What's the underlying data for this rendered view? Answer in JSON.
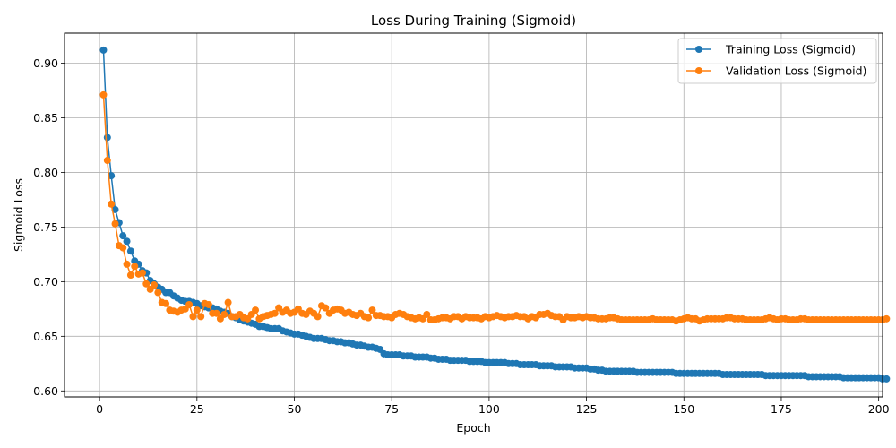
{
  "chart_data": {
    "type": "line",
    "title": "Loss During Training (Sigmoid)",
    "xlabel": "Epoch",
    "ylabel": "Sigmoid Loss",
    "xlim": [
      -9,
      201
    ],
    "ylim": [
      0.5945,
      0.9275
    ],
    "xticks": [
      0,
      25,
      50,
      75,
      100,
      125,
      150,
      175,
      200
    ],
    "yticks": [
      0.6,
      0.65,
      0.7,
      0.75,
      0.8,
      0.85,
      0.9
    ],
    "ytick_labels": [
      "0.60",
      "0.65",
      "0.70",
      "0.75",
      "0.80",
      "0.85",
      "0.90"
    ],
    "grid": true,
    "legend_position": "top-right",
    "x_start": 1,
    "x_end": 200,
    "series": [
      {
        "name": "Training Loss (Sigmoid)",
        "color": "#1f77b4",
        "values": [
          0.912,
          0.832,
          0.797,
          0.766,
          0.754,
          0.742,
          0.737,
          0.728,
          0.719,
          0.716,
          0.71,
          0.708,
          0.701,
          0.698,
          0.695,
          0.693,
          0.69,
          0.69,
          0.687,
          0.685,
          0.683,
          0.682,
          0.682,
          0.681,
          0.68,
          0.678,
          0.677,
          0.676,
          0.676,
          0.675,
          0.673,
          0.672,
          0.671,
          0.668,
          0.667,
          0.665,
          0.664,
          0.663,
          0.662,
          0.661,
          0.659,
          0.659,
          0.658,
          0.657,
          0.657,
          0.657,
          0.655,
          0.654,
          0.653,
          0.652,
          0.652,
          0.651,
          0.65,
          0.649,
          0.648,
          0.648,
          0.648,
          0.647,
          0.646,
          0.646,
          0.645,
          0.645,
          0.644,
          0.644,
          0.643,
          0.642,
          0.642,
          0.641,
          0.64,
          0.64,
          0.639,
          0.638,
          0.634,
          0.633,
          0.633,
          0.633,
          0.633,
          0.632,
          0.632,
          0.632,
          0.631,
          0.631,
          0.631,
          0.631,
          0.63,
          0.63,
          0.629,
          0.629,
          0.629,
          0.628,
          0.628,
          0.628,
          0.628,
          0.628,
          0.627,
          0.627,
          0.627,
          0.627,
          0.626,
          0.626,
          0.626,
          0.626,
          0.626,
          0.626,
          0.625,
          0.625,
          0.625,
          0.624,
          0.624,
          0.624,
          0.624,
          0.624,
          0.623,
          0.623,
          0.623,
          0.623,
          0.622,
          0.622,
          0.622,
          0.622,
          0.622,
          0.621,
          0.621,
          0.621,
          0.621,
          0.62,
          0.62,
          0.619,
          0.619,
          0.618,
          0.618,
          0.618,
          0.618,
          0.618,
          0.618,
          0.618,
          0.618,
          0.617,
          0.617,
          0.617,
          0.617,
          0.617,
          0.617,
          0.617,
          0.617,
          0.617,
          0.617,
          0.616,
          0.616,
          0.616,
          0.616,
          0.616,
          0.616,
          0.616,
          0.616,
          0.616,
          0.616,
          0.616,
          0.616,
          0.615,
          0.615,
          0.615,
          0.615,
          0.615,
          0.615,
          0.615,
          0.615,
          0.615,
          0.615,
          0.615,
          0.614,
          0.614,
          0.614,
          0.614,
          0.614,
          0.614,
          0.614,
          0.614,
          0.614,
          0.614,
          0.614,
          0.613,
          0.613,
          0.613,
          0.613,
          0.613,
          0.613,
          0.613,
          0.613,
          0.613,
          0.612,
          0.612,
          0.612,
          0.612,
          0.612,
          0.612,
          0.612,
          0.612,
          0.612,
          0.612,
          0.611,
          0.611
        ]
      },
      {
        "name": "Validation Loss (Sigmoid)",
        "color": "#ff7f0e",
        "values": [
          0.871,
          0.811,
          0.771,
          0.753,
          0.733,
          0.731,
          0.716,
          0.706,
          0.714,
          0.707,
          0.708,
          0.698,
          0.693,
          0.697,
          0.69,
          0.681,
          0.68,
          0.674,
          0.673,
          0.672,
          0.674,
          0.675,
          0.679,
          0.668,
          0.674,
          0.668,
          0.68,
          0.679,
          0.671,
          0.671,
          0.666,
          0.67,
          0.681,
          0.668,
          0.668,
          0.67,
          0.667,
          0.666,
          0.67,
          0.674,
          0.666,
          0.668,
          0.669,
          0.67,
          0.671,
          0.676,
          0.672,
          0.674,
          0.671,
          0.672,
          0.675,
          0.671,
          0.67,
          0.673,
          0.671,
          0.668,
          0.678,
          0.676,
          0.671,
          0.674,
          0.675,
          0.674,
          0.671,
          0.672,
          0.67,
          0.669,
          0.671,
          0.668,
          0.667,
          0.674,
          0.669,
          0.669,
          0.668,
          0.668,
          0.667,
          0.67,
          0.671,
          0.67,
          0.668,
          0.667,
          0.666,
          0.667,
          0.666,
          0.67,
          0.665,
          0.665,
          0.666,
          0.667,
          0.667,
          0.666,
          0.668,
          0.668,
          0.666,
          0.668,
          0.667,
          0.667,
          0.667,
          0.666,
          0.668,
          0.667,
          0.668,
          0.669,
          0.668,
          0.667,
          0.668,
          0.668,
          0.669,
          0.668,
          0.668,
          0.666,
          0.668,
          0.667,
          0.67,
          0.67,
          0.671,
          0.669,
          0.668,
          0.668,
          0.665,
          0.668,
          0.667,
          0.667,
          0.668,
          0.667,
          0.668,
          0.667,
          0.667,
          0.666,
          0.666,
          0.666,
          0.667,
          0.667,
          0.666,
          0.665,
          0.665,
          0.665,
          0.665,
          0.665,
          0.665,
          0.665,
          0.665,
          0.666,
          0.665,
          0.665,
          0.665,
          0.665,
          0.665,
          0.664,
          0.665,
          0.666,
          0.667,
          0.666,
          0.666,
          0.664,
          0.665,
          0.666,
          0.666,
          0.666,
          0.666,
          0.666,
          0.667,
          0.667,
          0.666,
          0.666,
          0.666,
          0.665,
          0.665,
          0.665,
          0.665,
          0.665,
          0.666,
          0.667,
          0.666,
          0.665,
          0.666,
          0.666,
          0.665,
          0.665,
          0.665,
          0.666,
          0.666,
          0.665,
          0.665,
          0.665,
          0.665,
          0.665,
          0.665,
          0.665,
          0.665,
          0.665,
          0.665,
          0.665,
          0.665,
          0.665,
          0.665,
          0.665,
          0.665,
          0.665,
          0.665,
          0.665,
          0.665,
          0.666
        ]
      }
    ]
  }
}
